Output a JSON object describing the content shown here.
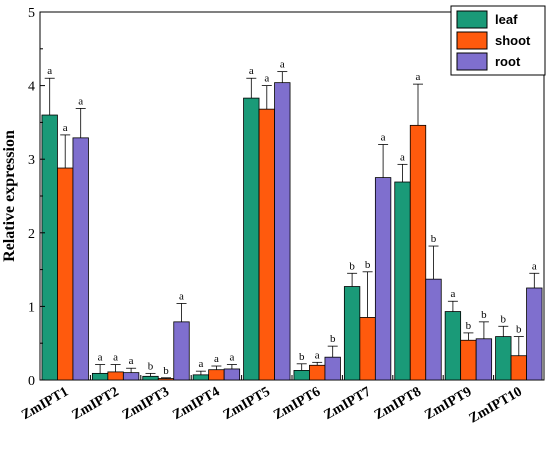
{
  "chart_data": {
    "type": "bar",
    "ylabel": "Relative expression",
    "xlabel": "",
    "ylim": [
      0,
      5
    ],
    "yticks": [
      0,
      1,
      2,
      3,
      4,
      5
    ],
    "grid": false,
    "legend_position": "top-right",
    "categories": [
      "ZmIPT1",
      "ZmIPT2",
      "ZmIPT3",
      "ZmIPT4",
      "ZmIPT5",
      "ZmIPT6",
      "ZmIPT7",
      "ZmIPT8",
      "ZmIPT9",
      "ZmIPT10"
    ],
    "series": [
      {
        "name": "leaf",
        "color": "#1a9a78",
        "values": [
          3.6,
          0.09,
          0.05,
          0.07,
          3.83,
          0.13,
          1.27,
          2.69,
          0.93,
          0.59
        ],
        "errors": [
          0.5,
          0.12,
          0.04,
          0.05,
          0.27,
          0.09,
          0.18,
          0.24,
          0.14,
          0.14
        ],
        "significance": [
          "a",
          "a",
          "b",
          "a",
          "a",
          "b",
          "b",
          "a",
          "a",
          "b"
        ]
      },
      {
        "name": "shoot",
        "color": "#ff5a0d",
        "values": [
          2.88,
          0.11,
          0.02,
          0.14,
          3.68,
          0.2,
          0.85,
          3.46,
          0.54,
          0.33
        ],
        "errors": [
          0.45,
          0.1,
          0.01,
          0.05,
          0.32,
          0.04,
          0.62,
          0.56,
          0.1,
          0.26
        ],
        "significance": [
          "a",
          "a",
          "b",
          "a",
          "a",
          "a",
          "b",
          "a",
          "b",
          "b"
        ]
      },
      {
        "name": "root",
        "color": "#7f6fce",
        "values": [
          3.29,
          0.1,
          0.79,
          0.15,
          4.04,
          0.31,
          2.75,
          1.37,
          0.56,
          1.25
        ],
        "errors": [
          0.4,
          0.06,
          0.25,
          0.06,
          0.15,
          0.15,
          0.45,
          0.45,
          0.23,
          0.2
        ],
        "significance": [
          "a",
          "a",
          "a",
          "a",
          "a",
          "b",
          "a",
          "b",
          "b",
          "a"
        ]
      }
    ]
  }
}
